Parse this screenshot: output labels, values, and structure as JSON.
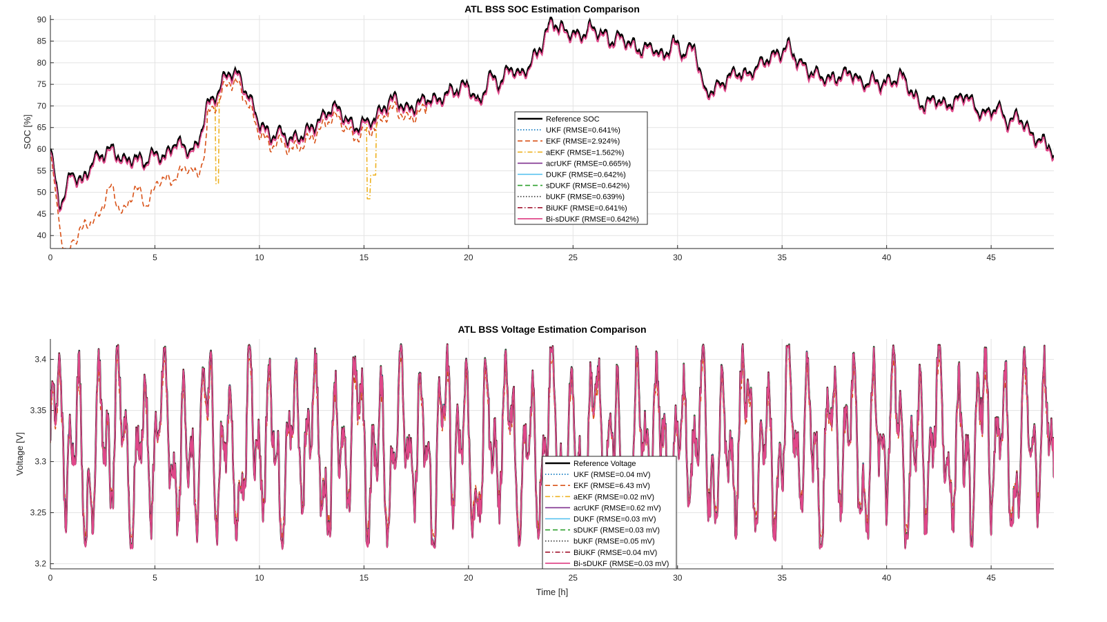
{
  "chart_data": [
    {
      "type": "line",
      "title": "ATL BSS SOC Estimation Comparison",
      "xlabel": "",
      "ylabel": "SOC [%]",
      "xlim": [
        0,
        48
      ],
      "ylim": [
        37,
        91
      ],
      "xticks": [
        "0",
        "5",
        "10",
        "15",
        "20",
        "25",
        "30",
        "35",
        "40",
        "45"
      ],
      "yticks": [
        "40",
        "45",
        "50",
        "55",
        "60",
        "65",
        "70",
        "75",
        "80",
        "85",
        "90"
      ],
      "grid": true,
      "legend_position": "center",
      "series": [
        {
          "name": "Reference SOC",
          "color": "#000000",
          "dash": "solid",
          "width": 2.6
        },
        {
          "name": "UKF (RMSE=0.641%)",
          "color": "#0072BD",
          "dash": "dot",
          "width": 1.6
        },
        {
          "name": "EKF (RMSE=2.924%)",
          "color": "#D95319",
          "dash": "dash",
          "width": 1.6
        },
        {
          "name": "aEKF (RMSE=1.562%)",
          "color": "#EDB120",
          "dash": "dashdot",
          "width": 1.6
        },
        {
          "name": "acrUKF (RMSE=0.665%)",
          "color": "#7E2F8E",
          "dash": "solid",
          "width": 1.6
        },
        {
          "name": "DUKF (RMSE=0.642%)",
          "color": "#4DBEEE",
          "dash": "solid",
          "width": 1.6
        },
        {
          "name": "sDUKF (RMSE=0.642%)",
          "color": "#2CA02C",
          "dash": "dash",
          "width": 1.6
        },
        {
          "name": "bUKF (RMSE=0.639%)",
          "color": "#333333",
          "dash": "dot",
          "width": 1.6
        },
        {
          "name": "BiUKF (RMSE=0.641%)",
          "color": "#A2142F",
          "dash": "dashdot",
          "width": 1.6
        },
        {
          "name": "Bi-sDUKF (RMSE=0.642%)",
          "color": "#E0488A",
          "dash": "solid",
          "width": 1.8
        }
      ],
      "reference_points": {
        "x": [
          0,
          0.4,
          0.7,
          1.0,
          1.5,
          2.0,
          2.5,
          3.0,
          3.5,
          4.0,
          4.5,
          5.0,
          5.5,
          6.0,
          6.5,
          7.0,
          7.5,
          8.0,
          8.5,
          9.0,
          9.5,
          10.0,
          10.5,
          11.0,
          11.5,
          12.0,
          12.5,
          13.0,
          13.5,
          14.0,
          14.5,
          15.0,
          15.5,
          16.0,
          16.5,
          17.0,
          17.5,
          18.0,
          18.5,
          19.0,
          19.5,
          20.0,
          20.5,
          21.0,
          21.5,
          22.0,
          22.5,
          23.0,
          23.5,
          24.0,
          24.3,
          24.8,
          25.3,
          25.8,
          26.3,
          26.8,
          27.3,
          27.8,
          28.3,
          28.8,
          29.3,
          29.8,
          30.3,
          30.8,
          31.3,
          31.8,
          32.3,
          32.8,
          33.3,
          33.8,
          34.3,
          34.8,
          35.3,
          35.8,
          36.3,
          36.8,
          37.3,
          37.8,
          38.3,
          38.8,
          39.3,
          39.8,
          40.3,
          40.8,
          41.3,
          41.8,
          42.3,
          42.8,
          43.3,
          43.8,
          44.3,
          44.8,
          45.3,
          45.8,
          46.3,
          46.8,
          47.3,
          47.8,
          48.0
        ],
        "y": [
          60,
          47.5,
          49,
          55,
          52,
          57,
          59,
          60,
          57,
          58,
          57,
          59,
          58,
          62,
          60,
          60,
          70,
          73,
          78,
          77,
          72,
          66,
          63,
          64,
          62,
          63,
          65,
          67,
          70,
          68,
          65,
          66,
          67,
          70,
          72,
          69,
          70,
          72,
          71,
          73,
          74,
          75,
          70,
          77,
          75,
          79,
          77,
          80,
          84,
          90,
          88,
          87,
          86,
          88,
          87,
          85,
          86,
          84,
          83,
          84,
          81,
          85,
          82,
          84,
          73,
          74,
          76,
          78,
          77,
          79,
          81,
          82,
          84,
          80,
          78,
          77,
          76,
          77,
          78,
          75,
          76,
          75,
          76,
          77,
          72,
          70,
          72,
          70,
          71,
          73,
          69,
          68,
          70,
          66,
          68,
          64,
          62,
          61,
          58
        ]
      },
      "estimate_offset": -0.5
    },
    {
      "type": "line",
      "title": "ATL BSS Voltage Estimation Comparison",
      "xlabel": "Time [h]",
      "ylabel": "Voltage [V]",
      "xlim": [
        0,
        48
      ],
      "ylim": [
        3.195,
        3.42
      ],
      "xticks": [
        "0",
        "5",
        "10",
        "15",
        "20",
        "25",
        "30",
        "35",
        "40",
        "45"
      ],
      "yticks": [
        "3.2",
        "3.25",
        "3.3",
        "3.35",
        "3.4"
      ],
      "grid": true,
      "legend_position": "bottom-center",
      "series": [
        {
          "name": "Reference Voltage",
          "color": "#000000",
          "dash": "solid",
          "width": 2.6
        },
        {
          "name": "UKF (RMSE=0.04 mV)",
          "color": "#0072BD",
          "dash": "dot",
          "width": 1.6
        },
        {
          "name": "EKF (RMSE=6.43 mV)",
          "color": "#D95319",
          "dash": "dash",
          "width": 1.6
        },
        {
          "name": "aEKF (RMSE=0.02 mV)",
          "color": "#EDB120",
          "dash": "dashdot",
          "width": 1.6
        },
        {
          "name": "acrUKF (RMSE=0.62 mV)",
          "color": "#7E2F8E",
          "dash": "solid",
          "width": 1.6
        },
        {
          "name": "DUKF (RMSE=0.03 mV)",
          "color": "#4DBEEE",
          "dash": "solid",
          "width": 1.6
        },
        {
          "name": "sDUKF (RMSE=0.03 mV)",
          "color": "#2CA02C",
          "dash": "dash",
          "width": 1.6
        },
        {
          "name": "bUKF (RMSE=0.05 mV)",
          "color": "#333333",
          "dash": "dot",
          "width": 1.6
        },
        {
          "name": "BiUKF (RMSE=0.04 mV)",
          "color": "#A2142F",
          "dash": "dashdot",
          "width": 1.6
        },
        {
          "name": "Bi-sDUKF (RMSE=0.03 mV)",
          "color": "#E0488A",
          "dash": "solid",
          "width": 1.8
        }
      ],
      "voltage_range": [
        3.215,
        3.415
      ]
    }
  ]
}
